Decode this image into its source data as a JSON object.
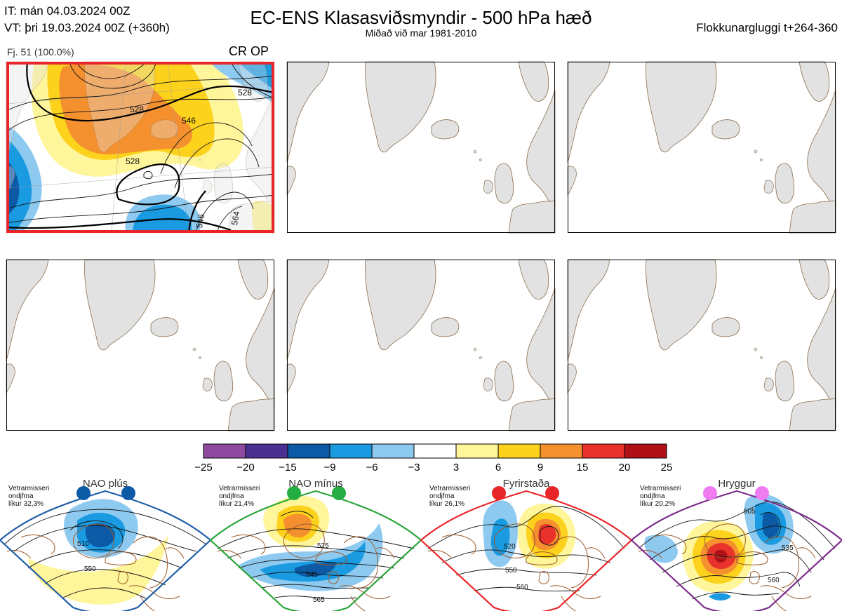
{
  "header": {
    "it_line": "IT: mán 04.03.2024 00Z",
    "vt_line": "VT: þri 19.03.2024 00Z  (+360h)",
    "title": "EC-ENS Klasasviðsmyndir - 500 hPa hæð",
    "subtitle": "Miðað við mar 1981-2010",
    "window": "Flokkunargluggi t+264-360"
  },
  "cluster": {
    "label": "Fj. 51 (100.0%)",
    "tag": "CR OP",
    "highlight_color": "#e8262a",
    "contour_labels": [
      "528",
      "546",
      "528",
      "528",
      "546",
      "564"
    ]
  },
  "colorbar": {
    "ticks": [
      "−25",
      "−20",
      "−15",
      "−9",
      "−6",
      "−3",
      "3",
      "6",
      "9",
      "15",
      "20",
      "25"
    ],
    "colors": [
      "#8e4a9e",
      "#4b2f91",
      "#0c5aa6",
      "#1a9ae0",
      "#8ecaf0",
      "#ffffff",
      "#fff59a",
      "#fcd21c",
      "#f5902f",
      "#e8322b",
      "#b01117"
    ]
  },
  "regimes": [
    {
      "name": "NAO plús",
      "info": [
        "Vetrarmisseri",
        "ondjfma",
        "líkur 32,3%"
      ],
      "border": "#1f5ea8",
      "dot": "#0c5aa6",
      "labels": [
        "510",
        "550"
      ]
    },
    {
      "name": "NAO mínus",
      "info": [
        "Vetrarmisseri",
        "ondjfma",
        "líkur 21,4%"
      ],
      "border": "#2aa53a",
      "dot": "#23ad42",
      "labels": [
        "525",
        "545",
        "565"
      ]
    },
    {
      "name": "Fyrirstaða",
      "info": [
        "Vetrarmisseri",
        "ondjfma",
        "líkur 26,1%"
      ],
      "border": "#e8262a",
      "dot": "#e8262a",
      "labels": [
        "520",
        "550",
        "560"
      ]
    },
    {
      "name": "Hryggur",
      "info": [
        "Vetrarmisseri",
        "ondjfma",
        "líkur 20,2%"
      ],
      "border": "#7b2c8a",
      "dot": "#ee7cf0",
      "labels": [
        "505",
        "535",
        "560"
      ]
    }
  ]
}
